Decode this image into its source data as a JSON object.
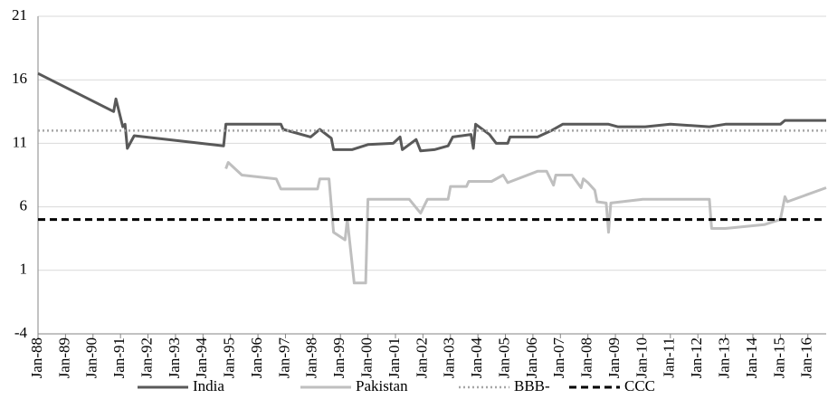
{
  "chart_data": {
    "type": "line",
    "xlim": [
      "Jan-88",
      "Sep-16"
    ],
    "xticks": [
      "Jan-88",
      "Jan-89",
      "Jan-90",
      "Jan-91",
      "Jan-92",
      "Jan-93",
      "Jan-94",
      "Jan-95",
      "Jan-96",
      "Jan-97",
      "Jan-98",
      "Jan-99",
      "Jan-00",
      "Jan-01",
      "Jan-02",
      "Jan-03",
      "Jan-04",
      "Jan-05",
      "Jan-06",
      "Jan-07",
      "Jan-08",
      "Jan-09",
      "Jan-10",
      "Jan-11",
      "Jan-12",
      "Jan-13",
      "Jan-14",
      "Jan-15",
      "Jan-16"
    ],
    "ylim": [
      -4,
      21
    ],
    "yticks": [
      -4,
      1,
      6,
      11,
      16,
      21
    ],
    "grid": true,
    "legend": "bottom",
    "series": [
      {
        "name": "India",
        "color": "#595959",
        "style": "solid",
        "x": [
          "Jan-88",
          "Oct-90",
          "Nov-90",
          "Feb-91",
          "Mar-91",
          "Apr-91",
          "Jul-91",
          "Oct-94",
          "Nov-94",
          "Nov-96",
          "Dec-96",
          "Dec-97",
          "Apr-98",
          "Sep-98",
          "Oct-98",
          "Jun-99",
          "Jan-00",
          "Dec-00",
          "Mar-01",
          "Apr-01",
          "Oct-01",
          "Dec-01",
          "Jun-02",
          "Dec-02",
          "Feb-03",
          "Oct-03",
          "Nov-03",
          "Dec-03",
          "Jun-04",
          "Sep-04",
          "Feb-05",
          "Mar-05",
          "Mar-06",
          "Sep-06",
          "Feb-07",
          "Oct-08",
          "Feb-09",
          "Feb-10",
          "Jan-11",
          "Jun-12",
          "Jan-13",
          "Jan-15",
          "Mar-15",
          "Sep-16"
        ],
        "values": [
          16.5,
          13.5,
          14.5,
          12.3,
          12.5,
          10.6,
          11.6,
          10.8,
          12.5,
          12.5,
          12.1,
          11.5,
          12.1,
          11.4,
          10.5,
          10.5,
          10.9,
          11.0,
          11.5,
          10.5,
          11.3,
          10.4,
          10.5,
          10.8,
          11.5,
          11.7,
          10.6,
          12.5,
          11.7,
          11.0,
          11.0,
          11.5,
          11.5,
          12.0,
          12.5,
          12.5,
          12.3,
          12.3,
          12.5,
          12.3,
          12.5,
          12.5,
          12.8,
          12.8
        ]
      },
      {
        "name": "Pakistan",
        "color": "#bfbfbf",
        "style": "solid",
        "x": [
          "Nov-94",
          "Dec-94",
          "Jun-95",
          "Sep-96",
          "Nov-96",
          "Mar-98",
          "Apr-98",
          "Aug-98",
          "Oct-98",
          "Mar-99",
          "Apr-99",
          "Jul-99",
          "Dec-99",
          "Jan-00",
          "Jul-01",
          "Dec-01",
          "Mar-02",
          "Dec-02",
          "Jan-03",
          "Aug-03",
          "Sep-03",
          "Jul-04",
          "Dec-04",
          "Feb-05",
          "Mar-06",
          "Jul-06",
          "Oct-06",
          "Nov-06",
          "Jun-07",
          "Oct-07",
          "Nov-07",
          "Jan-08",
          "Apr-08",
          "May-08",
          "Sep-08",
          "Oct-08",
          "Nov-08",
          "Jan-10",
          "Jun-12",
          "Jul-12",
          "Jan-13",
          "Jun-14",
          "Jan-15",
          "Mar-15",
          "Apr-15",
          "Sep-16"
        ],
        "values": [
          9.0,
          9.5,
          8.5,
          8.2,
          7.4,
          7.4,
          8.2,
          8.2,
          4.0,
          3.4,
          5.0,
          0,
          0,
          6.6,
          6.6,
          5.5,
          6.6,
          6.6,
          7.6,
          7.6,
          8.0,
          8.0,
          8.5,
          7.9,
          8.8,
          8.8,
          7.7,
          8.5,
          8.5,
          7.5,
          8.2,
          7.9,
          7.3,
          6.4,
          6.3,
          4.0,
          6.3,
          6.6,
          6.6,
          4.3,
          4.3,
          4.6,
          5.0,
          6.8,
          6.4,
          7.5
        ]
      },
      {
        "name": "BBB-",
        "color": "#a6a6a6",
        "style": "dotted",
        "x": [
          "Jan-88",
          "Sep-16"
        ],
        "values": [
          12,
          12
        ]
      },
      {
        "name": "CCC",
        "color": "#000000",
        "style": "dashed",
        "x": [
          "Jan-88",
          "Sep-16"
        ],
        "values": [
          5,
          5
        ]
      }
    ]
  }
}
